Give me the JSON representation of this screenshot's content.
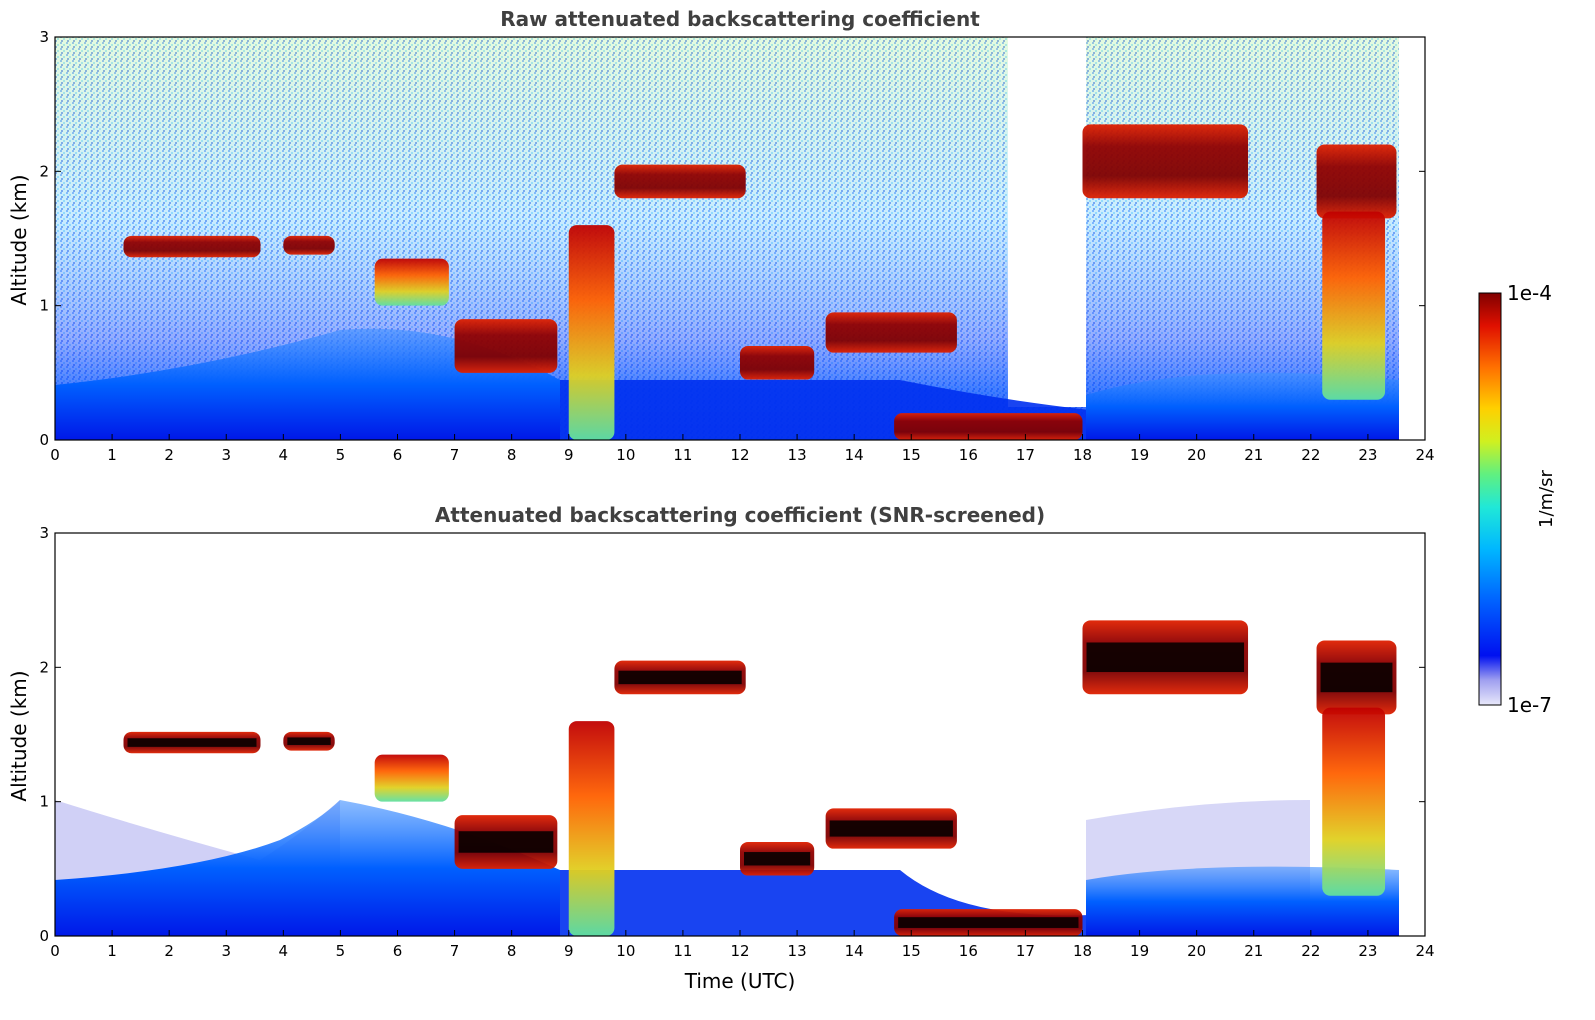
{
  "chart_data": [
    {
      "type": "heatmap",
      "title": "Raw attenuated backscattering coefficient",
      "xlabel": "",
      "ylabel": "Altitude (km)",
      "xlim": [
        0,
        24
      ],
      "ylim": [
        0,
        3
      ],
      "xticks": [
        "0",
        "1",
        "2",
        "3",
        "4",
        "5",
        "6",
        "7",
        "8",
        "9",
        "10",
        "11",
        "12",
        "13",
        "14",
        "15",
        "16",
        "17",
        "18",
        "19",
        "20",
        "21",
        "22",
        "23",
        "24"
      ],
      "yticks": [
        "0",
        "1",
        "2",
        "3"
      ],
      "layers": [
        {
          "x": [
            1.2,
            3.6
          ],
          "y": [
            1.36,
            1.52
          ],
          "level": "high"
        },
        {
          "x": [
            4.0,
            4.9
          ],
          "y": [
            1.38,
            1.52
          ],
          "level": "high"
        },
        {
          "x": [
            5.6,
            6.9
          ],
          "y": [
            1.0,
            1.35
          ],
          "level": "mixed"
        },
        {
          "x": [
            7.0,
            8.8
          ],
          "y": [
            0.5,
            0.9
          ],
          "level": "high"
        },
        {
          "x": [
            9.0,
            9.8
          ],
          "y": [
            0.0,
            1.6
          ],
          "level": "mixed"
        },
        {
          "x": [
            9.8,
            12.1
          ],
          "y": [
            1.8,
            2.05
          ],
          "level": "high"
        },
        {
          "x": [
            12.0,
            13.3
          ],
          "y": [
            0.45,
            0.7
          ],
          "level": "high"
        },
        {
          "x": [
            13.5,
            15.8
          ],
          "y": [
            0.65,
            0.95
          ],
          "level": "high"
        },
        {
          "x": [
            14.7,
            18.0
          ],
          "y": [
            0.0,
            0.2
          ],
          "level": "high"
        },
        {
          "x": [
            18.0,
            20.9
          ],
          "y": [
            1.8,
            2.35
          ],
          "level": "high"
        },
        {
          "x": [
            22.1,
            23.5
          ],
          "y": [
            1.65,
            2.2
          ],
          "level": "high"
        },
        {
          "x": [
            22.2,
            23.3
          ],
          "y": [
            0.3,
            1.7
          ],
          "level": "mixed"
        }
      ]
    },
    {
      "type": "heatmap",
      "title": "Attenuated backscattering coefficient (SNR-screened)",
      "xlabel": "Time (UTC)",
      "ylabel": "Altitude (km)",
      "xlim": [
        0,
        24
      ],
      "ylim": [
        0,
        3
      ],
      "xticks": [
        "0",
        "1",
        "2",
        "3",
        "4",
        "5",
        "6",
        "7",
        "8",
        "9",
        "10",
        "11",
        "12",
        "13",
        "14",
        "15",
        "16",
        "17",
        "18",
        "19",
        "20",
        "21",
        "22",
        "23",
        "24"
      ],
      "yticks": [
        "0",
        "1",
        "2",
        "3"
      ]
    }
  ],
  "colorbar": {
    "max_label": "1e-4",
    "min_label": "1e-7",
    "label": "1/m/sr",
    "colors": [
      "#e8e8fa",
      "#a0a0f0",
      "#0010f0",
      "#0060ff",
      "#00b8ff",
      "#20e8d8",
      "#60f080",
      "#d0f020",
      "#ffd000",
      "#ff7000",
      "#e01000",
      "#800000"
    ]
  }
}
